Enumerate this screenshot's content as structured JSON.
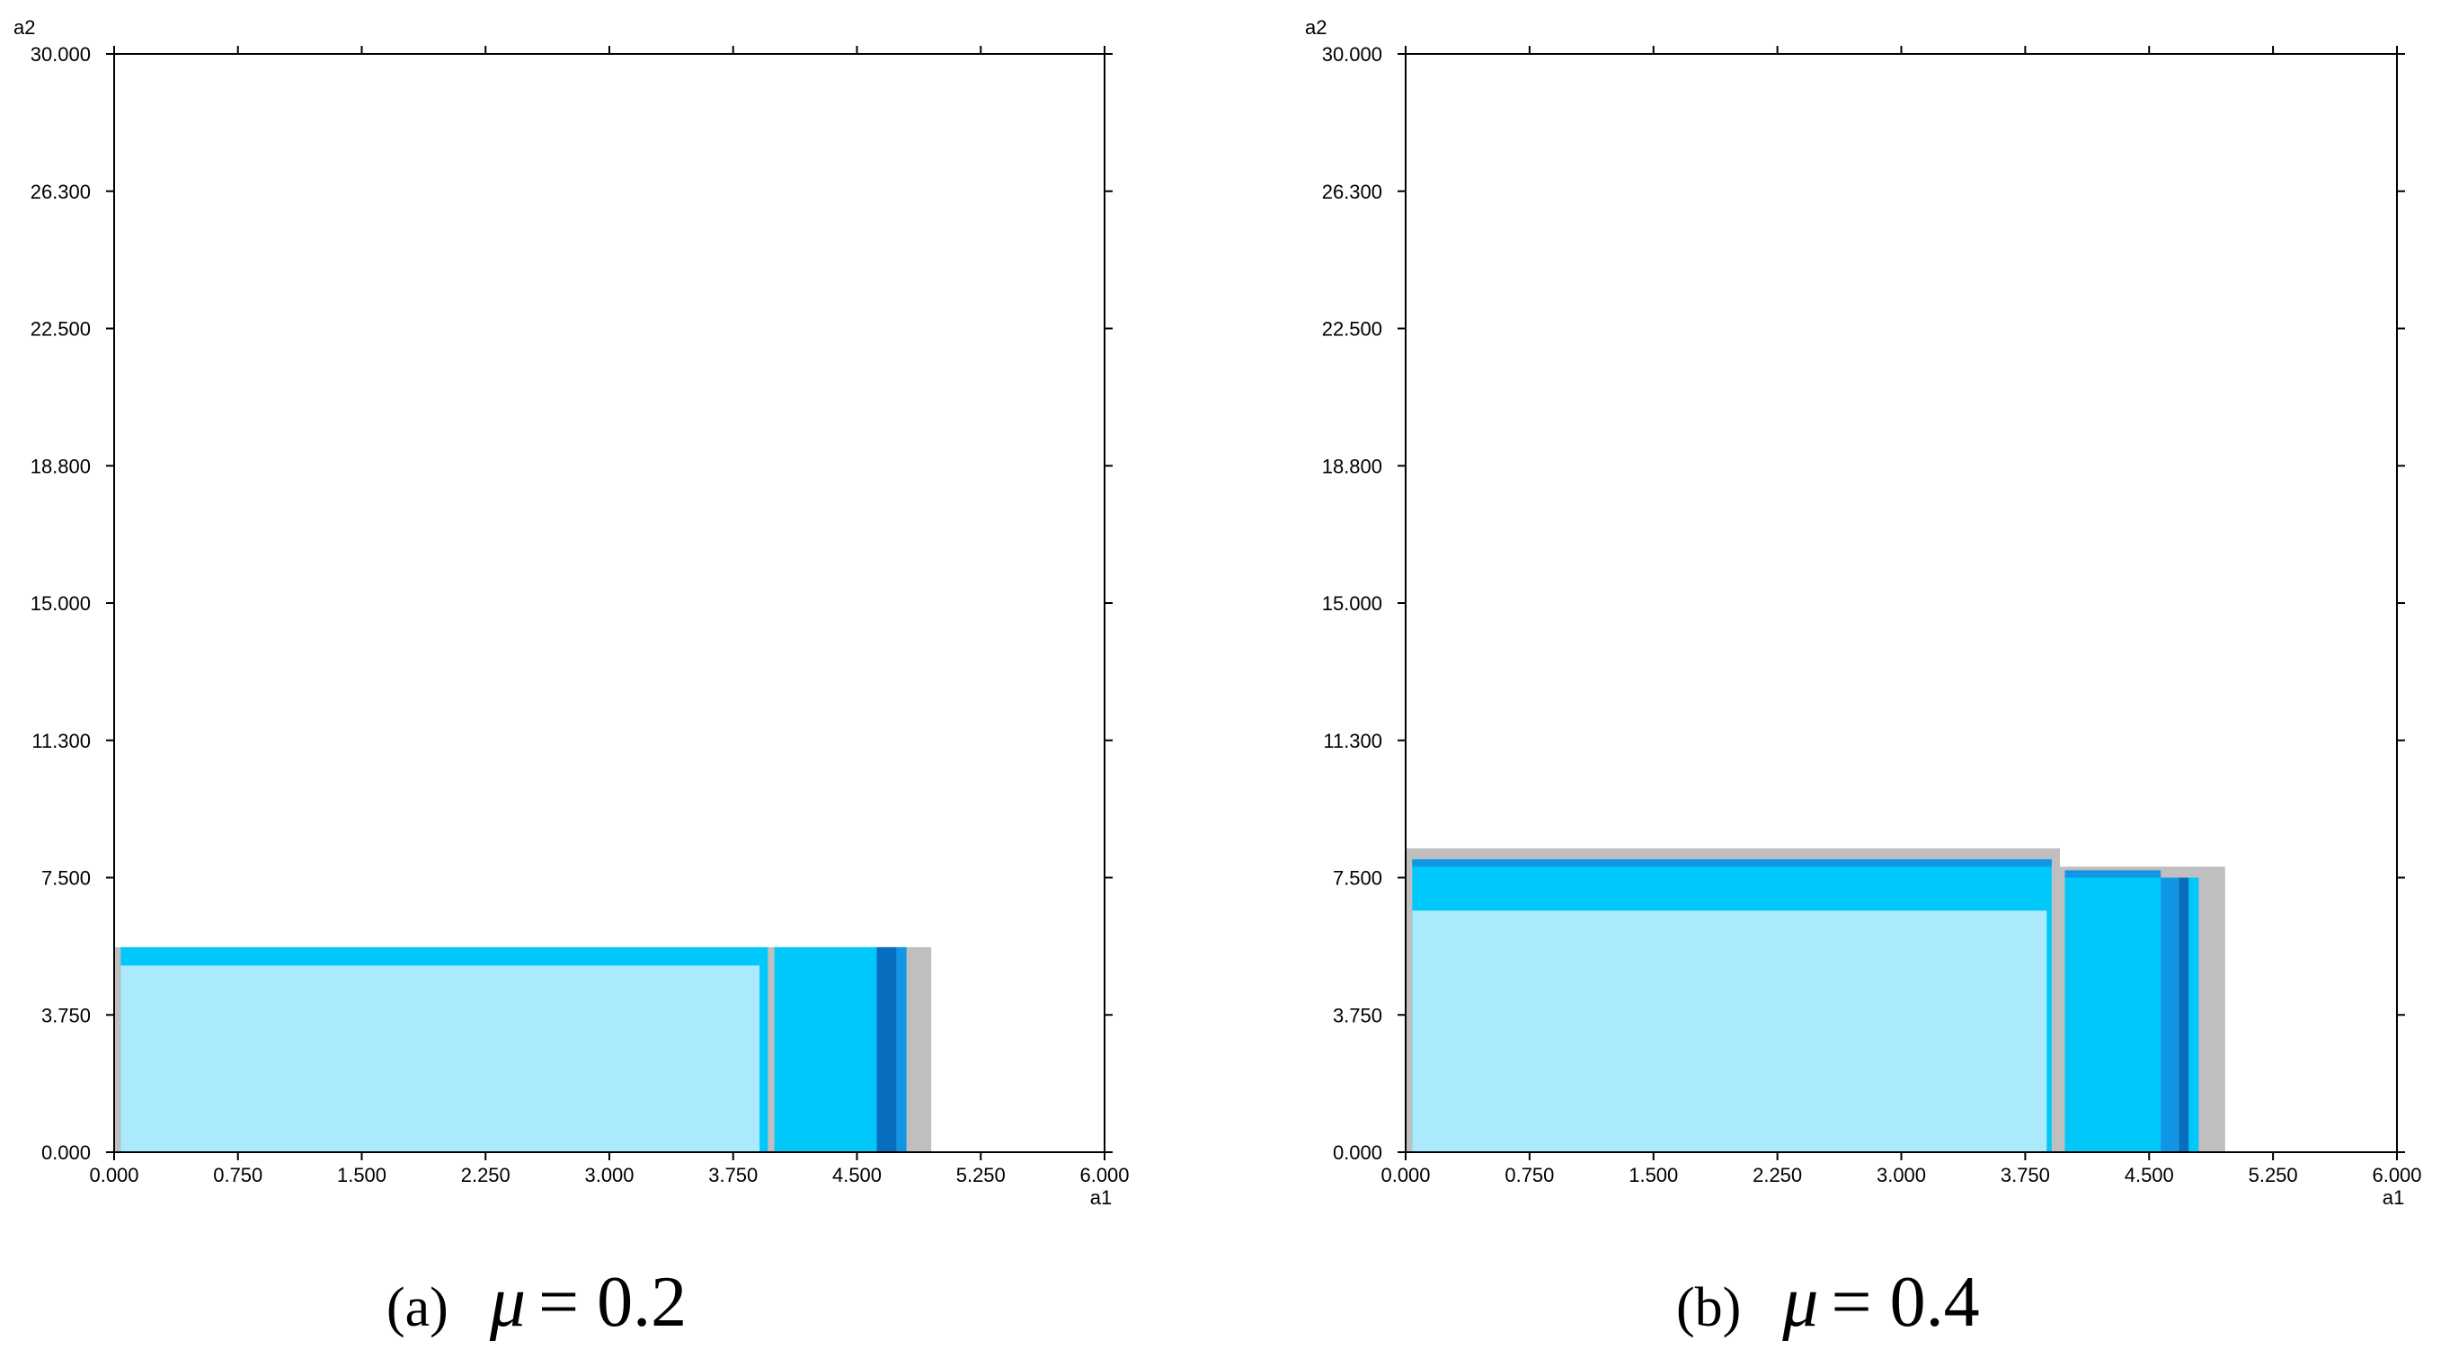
{
  "chart_data": [
    {
      "type": "heatmap",
      "caption": {
        "label": "(a)",
        "symbol": "μ",
        "equation": "= 0.2"
      },
      "xlabel": "a1",
      "ylabel": "a2",
      "xlim": [
        0,
        6
      ],
      "ylim": [
        0,
        30
      ],
      "x_ticks": [
        "0.000",
        "0.750",
        "1.500",
        "2.250",
        "3.000",
        "3.750",
        "4.500",
        "5.250",
        "6.000"
      ],
      "y_ticks": [
        "0.000",
        "3.750",
        "7.500",
        "11.300",
        "15.000",
        "18.800",
        "22.500",
        "26.300",
        "30.000"
      ],
      "colors": {
        "light": "#aaeafc",
        "mid": "#00c8fa",
        "dark": "#1196e6",
        "darker": "#0a6ec0",
        "border": "#bfbfbf"
      },
      "regions": [
        {
          "x": [
            0.0,
            4.95
          ],
          "y": [
            0.0,
            5.6
          ],
          "color": "border"
        },
        {
          "x": [
            0.04,
            3.96
          ],
          "y": [
            0.0,
            5.6
          ],
          "color": "mid"
        },
        {
          "x": [
            0.04,
            3.91
          ],
          "y": [
            0.0,
            5.1
          ],
          "color": "light"
        },
        {
          "x": [
            4.0,
            4.62
          ],
          "y": [
            0.0,
            5.6
          ],
          "color": "mid"
        },
        {
          "x": [
            4.62,
            4.74
          ],
          "y": [
            0.0,
            5.6
          ],
          "color": "darker"
        },
        {
          "x": [
            4.74,
            4.8
          ],
          "y": [
            0.0,
            5.6
          ],
          "color": "dark"
        }
      ]
    },
    {
      "type": "heatmap",
      "caption": {
        "label": "(b)",
        "symbol": "μ",
        "equation": "= 0.4"
      },
      "xlabel": "a1",
      "ylabel": "a2",
      "xlim": [
        0,
        6
      ],
      "ylim": [
        0,
        30
      ],
      "x_ticks": [
        "0.000",
        "0.750",
        "1.500",
        "2.250",
        "3.000",
        "3.750",
        "4.500",
        "5.250",
        "6.000"
      ],
      "y_ticks": [
        "0.000",
        "3.750",
        "7.500",
        "11.300",
        "15.000",
        "18.800",
        "22.500",
        "26.300",
        "30.000"
      ],
      "colors": {
        "light": "#aaeafc",
        "mid": "#00c8fa",
        "dark": "#1196e6",
        "darker": "#0a6ec0",
        "border": "#bfbfbf"
      },
      "regions": [
        {
          "x": [
            0.0,
            3.96
          ],
          "y": [
            0.0,
            8.3
          ],
          "color": "border"
        },
        {
          "x": [
            3.96,
            4.96
          ],
          "y": [
            0.0,
            7.8
          ],
          "color": "border"
        },
        {
          "x": [
            0.04,
            3.91
          ],
          "y": [
            0.0,
            8.0
          ],
          "color": "mid"
        },
        {
          "x": [
            0.04,
            3.91
          ],
          "y": [
            7.8,
            8.0
          ],
          "color": "dark"
        },
        {
          "x": [
            0.04,
            3.88
          ],
          "y": [
            0.0,
            6.6
          ],
          "color": "light"
        },
        {
          "x": [
            3.99,
            4.57
          ],
          "y": [
            0.0,
            7.5
          ],
          "color": "mid"
        },
        {
          "x": [
            3.99,
            4.57
          ],
          "y": [
            7.5,
            7.7
          ],
          "color": "dark"
        },
        {
          "x": [
            4.57,
            4.68
          ],
          "y": [
            0.0,
            7.5
          ],
          "color": "dark"
        },
        {
          "x": [
            4.68,
            4.74
          ],
          "y": [
            0.0,
            7.5
          ],
          "color": "darker"
        },
        {
          "x": [
            4.74,
            4.8
          ],
          "y": [
            0.0,
            7.5
          ],
          "color": "mid"
        }
      ]
    }
  ]
}
